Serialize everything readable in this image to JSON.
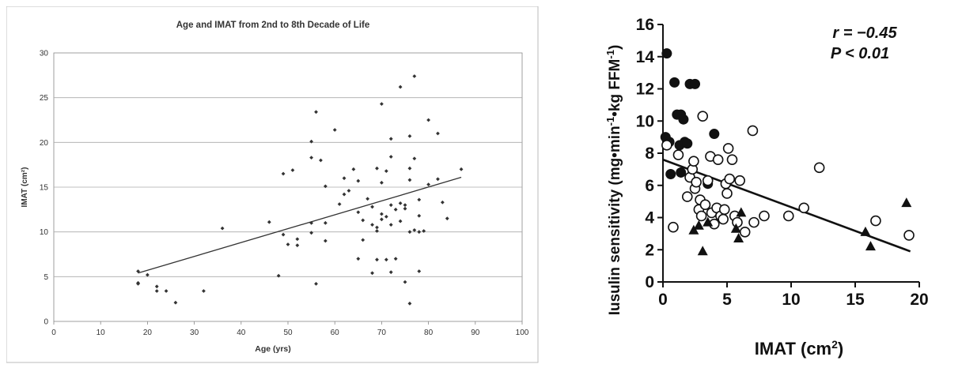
{
  "chart_data": [
    {
      "type": "scatter",
      "title": "Age and IMAT from 2nd to 8th Decade of Life",
      "xlabel": "Age (yrs)",
      "ylabel": "IMAT (cm²)",
      "xlim": [
        0,
        100
      ],
      "ylim": [
        0,
        30
      ],
      "xticks": [
        "0",
        "10",
        "20",
        "30",
        "40",
        "50",
        "60",
        "70",
        "80",
        "90",
        "100"
      ],
      "yticks": [
        "0",
        "5",
        "10",
        "15",
        "20",
        "25",
        "30"
      ],
      "grid": "horizontal",
      "colors": {
        "marker": "#333333",
        "grid": "#aaaaaa",
        "plot_bg": "#ffffff"
      },
      "trendline": {
        "x": [
          18,
          87
        ],
        "y": [
          5.4,
          16.1
        ]
      },
      "points": [
        [
          18,
          5.6
        ],
        [
          18,
          4.3
        ],
        [
          18,
          4.2
        ],
        [
          20,
          5.2
        ],
        [
          22,
          3.9
        ],
        [
          22,
          3.4
        ],
        [
          24,
          3.4
        ],
        [
          26,
          2.1
        ],
        [
          32,
          3.4
        ],
        [
          36,
          10.4
        ],
        [
          46,
          11.1
        ],
        [
          48,
          5.1
        ],
        [
          49,
          16.5
        ],
        [
          49,
          9.7
        ],
        [
          50,
          8.6
        ],
        [
          51,
          16.9
        ],
        [
          52,
          9.2
        ],
        [
          52,
          8.5
        ],
        [
          55,
          20.1
        ],
        [
          55,
          18.3
        ],
        [
          55,
          11
        ],
        [
          55,
          9.9
        ],
        [
          56,
          23.4
        ],
        [
          56,
          4.2
        ],
        [
          57,
          18
        ],
        [
          58,
          15.1
        ],
        [
          58,
          11
        ],
        [
          58,
          9
        ],
        [
          60,
          21.4
        ],
        [
          61,
          13.1
        ],
        [
          62,
          16
        ],
        [
          62,
          14.2
        ],
        [
          63,
          14.6
        ],
        [
          64,
          17
        ],
        [
          65,
          12.2
        ],
        [
          65,
          7
        ],
        [
          65,
          15.7
        ],
        [
          66,
          11.3
        ],
        [
          66,
          9.1
        ],
        [
          67,
          13.7
        ],
        [
          68,
          12.8
        ],
        [
          68,
          10.8
        ],
        [
          68,
          5.4
        ],
        [
          69,
          17.1
        ],
        [
          69,
          10.5
        ],
        [
          69,
          10.1
        ],
        [
          69,
          6.9
        ],
        [
          70,
          24.3
        ],
        [
          70,
          15.5
        ],
        [
          70,
          12
        ],
        [
          70,
          11.4
        ],
        [
          71,
          16.8
        ],
        [
          71,
          11.7
        ],
        [
          71,
          6.9
        ],
        [
          72,
          20.4
        ],
        [
          72,
          18.4
        ],
        [
          72,
          13
        ],
        [
          72,
          10.8
        ],
        [
          72,
          5.5
        ],
        [
          73,
          12.5
        ],
        [
          73,
          7
        ],
        [
          74,
          26.2
        ],
        [
          74,
          13.2
        ],
        [
          74,
          11.2
        ],
        [
          75,
          13
        ],
        [
          75,
          12.6
        ],
        [
          75,
          4.4
        ],
        [
          76,
          20.7
        ],
        [
          76,
          17.1
        ],
        [
          76,
          15.8
        ],
        [
          76,
          10
        ],
        [
          76,
          2
        ],
        [
          77,
          27.4
        ],
        [
          77,
          18.2
        ],
        [
          77,
          10.2
        ],
        [
          78,
          13.6
        ],
        [
          78,
          11.8
        ],
        [
          78,
          10
        ],
        [
          78,
          5.6
        ],
        [
          79,
          10.1
        ],
        [
          80,
          22.5
        ],
        [
          80,
          15.3
        ],
        [
          82,
          21
        ],
        [
          82,
          15.9
        ],
        [
          83,
          13.3
        ],
        [
          84,
          11.5
        ],
        [
          87,
          17
        ]
      ]
    },
    {
      "type": "scatter",
      "title": "",
      "xlabel": "IMAT (cm",
      "xlabel_sup": "2",
      "xlabel_end": ")",
      "ylabel": "Iusulin sensitivity (mg•min",
      "ylabel_sup1": "-1",
      "ylabel_mid": "•kg FFM",
      "ylabel_sup2": "-1",
      "ylabel_end": ")",
      "annotation": {
        "r": "r = −0.45",
        "p": "P < 0.01"
      },
      "xlim": [
        0,
        20
      ],
      "ylim": [
        0,
        16
      ],
      "xticks": [
        "0",
        "5",
        "10",
        "15",
        "20"
      ],
      "yticks": [
        "0",
        "2",
        "4",
        "6",
        "8",
        "10",
        "12",
        "14",
        "16"
      ],
      "grid": "off",
      "colors": {
        "marker": "#111111"
      },
      "trendline": {
        "x": [
          0,
          19.3
        ],
        "y": [
          7.6,
          1.9
        ]
      },
      "series": [
        {
          "marker": "filled-circle",
          "points": [
            [
              0.3,
              14.2
            ],
            [
              0.2,
              9
            ],
            [
              0.5,
              8.7
            ],
            [
              0.6,
              6.7
            ],
            [
              0.9,
              12.4
            ],
            [
              1.1,
              10.4
            ],
            [
              1.4,
              10.4
            ],
            [
              1.3,
              8.5
            ],
            [
              1.7,
              8.7
            ],
            [
              1.9,
              8.6
            ],
            [
              1.6,
              10.1
            ],
            [
              1.4,
              6.8
            ],
            [
              2.1,
              12.3
            ],
            [
              2.5,
              12.3
            ],
            [
              3.5,
              6.1
            ],
            [
              4,
              9.2
            ]
          ]
        },
        {
          "marker": "open-circle",
          "points": [
            [
              0.3,
              8.5
            ],
            [
              0.8,
              3.4
            ],
            [
              1.2,
              7.9
            ],
            [
              1.9,
              5.3
            ],
            [
              2.1,
              6.5
            ],
            [
              2.3,
              7
            ],
            [
              2.4,
              7.5
            ],
            [
              2.5,
              5.8
            ],
            [
              2.6,
              6.2
            ],
            [
              2.8,
              4.5
            ],
            [
              2.9,
              5.1
            ],
            [
              3,
              4.1
            ],
            [
              3.1,
              10.3
            ],
            [
              3.3,
              4.8
            ],
            [
              3.5,
              6.3
            ],
            [
              3.7,
              7.8
            ],
            [
              3.8,
              4.3
            ],
            [
              4,
              3.6
            ],
            [
              4.2,
              4.6
            ],
            [
              4.3,
              7.6
            ],
            [
              4.5,
              4.1
            ],
            [
              4.7,
              3.9
            ],
            [
              4.8,
              4.5
            ],
            [
              4.9,
              6.1
            ],
            [
              5,
              5.5
            ],
            [
              5.1,
              8.3
            ],
            [
              5.2,
              6.4
            ],
            [
              5.4,
              7.6
            ],
            [
              5.6,
              4.1
            ],
            [
              5.8,
              3.7
            ],
            [
              6,
              6.3
            ],
            [
              6.4,
              3.1
            ],
            [
              7,
              9.4
            ],
            [
              7.1,
              3.7
            ],
            [
              7.9,
              4.1
            ],
            [
              9.8,
              4.1
            ],
            [
              11,
              4.6
            ],
            [
              12.2,
              7.1
            ],
            [
              16.6,
              3.8
            ],
            [
              19.2,
              2.9
            ]
          ]
        },
        {
          "marker": "triangle",
          "points": [
            [
              2.4,
              3.2
            ],
            [
              2.8,
              3.5
            ],
            [
              3.1,
              1.9
            ],
            [
              3.5,
              3.7
            ],
            [
              5.7,
              3.3
            ],
            [
              5.9,
              2.7
            ],
            [
              6.1,
              4.3
            ],
            [
              15.8,
              3.1
            ],
            [
              16.2,
              2.2
            ],
            [
              19,
              4.9
            ]
          ]
        }
      ]
    }
  ]
}
